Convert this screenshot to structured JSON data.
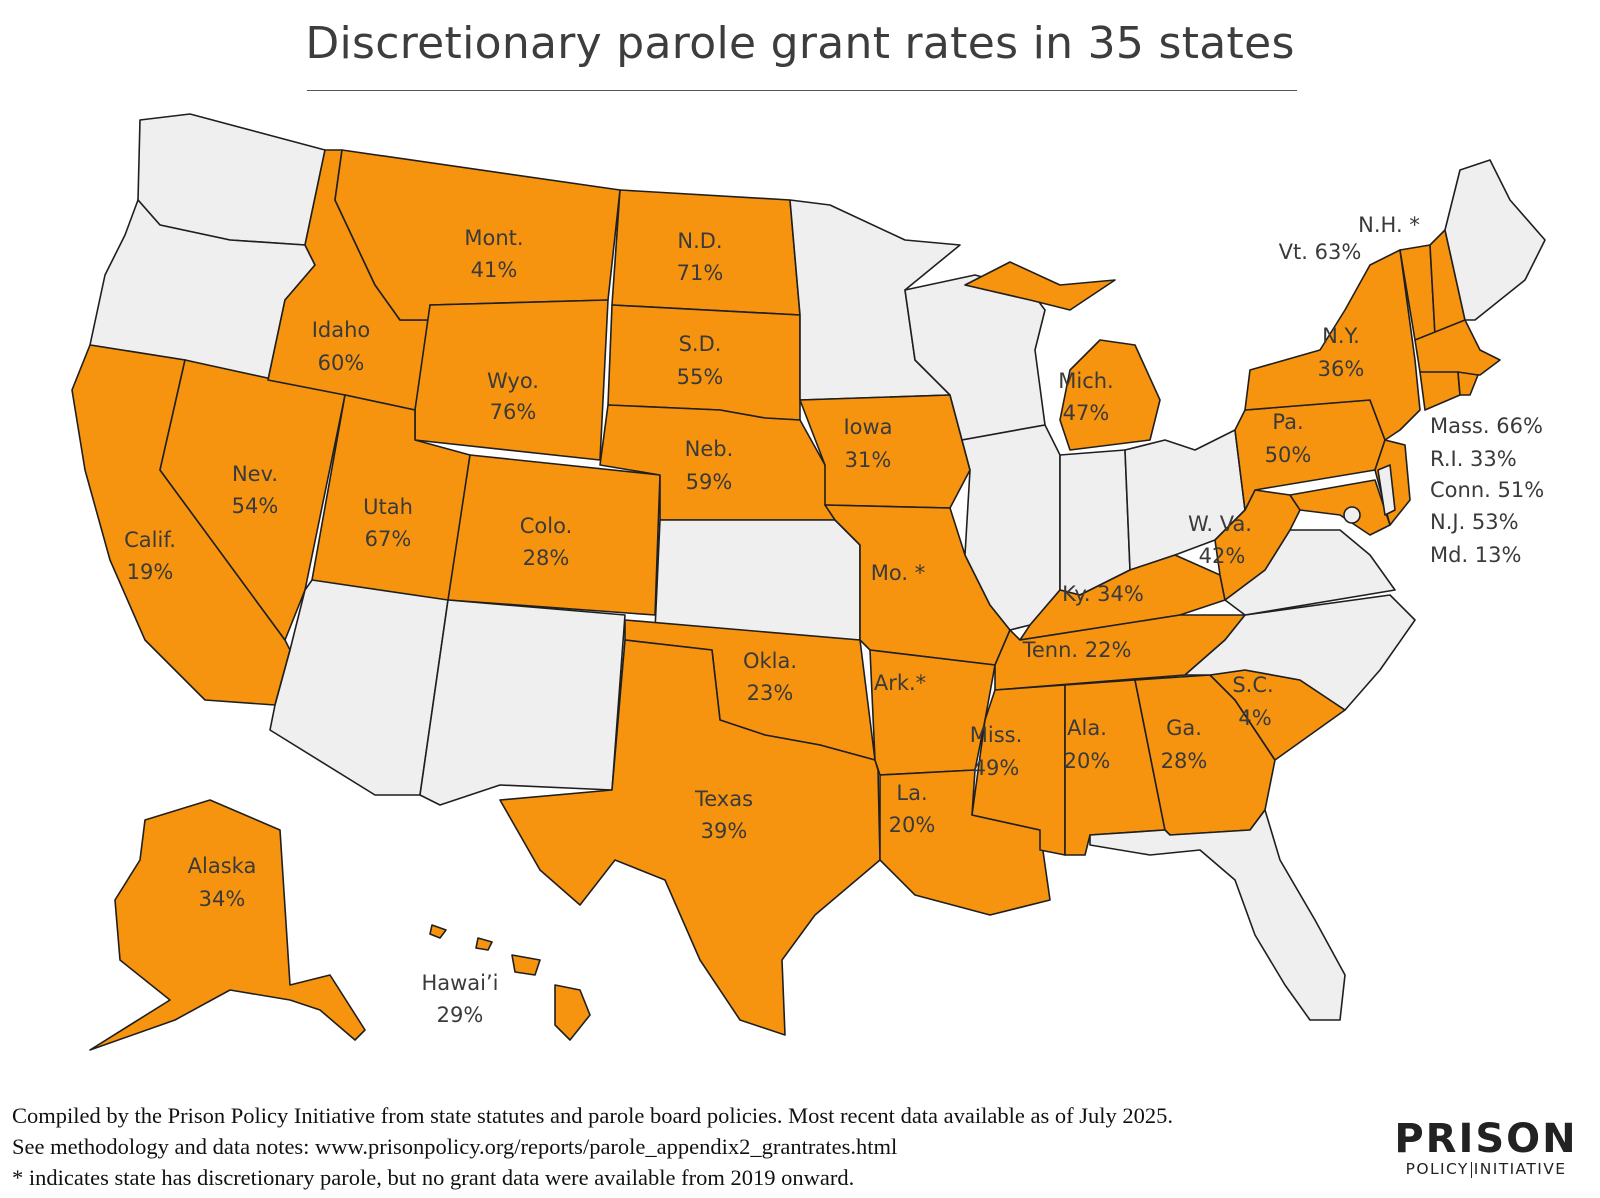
{
  "title": "Discretionary parole grant rates in 35 states",
  "colors": {
    "has_parole": "#f7940f",
    "no_parole": "#efefef",
    "border": "#1f1f1f"
  },
  "states": {
    "mont": {
      "name": "Mont.",
      "rate": "41%"
    },
    "nd": {
      "name": "N.D.",
      "rate": "71%"
    },
    "idaho": {
      "name": "Idaho",
      "rate": "60%"
    },
    "wyo": {
      "name": "Wyo.",
      "rate": "76%"
    },
    "sd": {
      "name": "S.D.",
      "rate": "55%"
    },
    "neb": {
      "name": "Neb.",
      "rate": "59%"
    },
    "iowa": {
      "name": "Iowa",
      "rate": "31%"
    },
    "nev": {
      "name": "Nev.",
      "rate": "54%"
    },
    "utah": {
      "name": "Utah",
      "rate": "67%"
    },
    "colo": {
      "name": "Colo.",
      "rate": "28%"
    },
    "calif": {
      "name": "Calif.",
      "rate": "19%"
    },
    "mo": {
      "name": "Mo. *"
    },
    "mich": {
      "name": "Mich.",
      "rate": "47%"
    },
    "ny": {
      "name": "N.Y.",
      "rate": "36%"
    },
    "pa": {
      "name": "Pa.",
      "rate": "50%"
    },
    "wva": {
      "name": "W. Va.",
      "rate": "42%"
    },
    "ky": {
      "label": "Ky. 34%"
    },
    "tenn": {
      "label": "Tenn. 22%"
    },
    "okla": {
      "name": "Okla.",
      "rate": "23%"
    },
    "ark": {
      "name": "Ark.*"
    },
    "miss": {
      "name": "Miss.",
      "rate": "49%"
    },
    "ala": {
      "name": "Ala.",
      "rate": "20%"
    },
    "ga": {
      "name": "Ga.",
      "rate": "28%"
    },
    "sc": {
      "name": "S.C.",
      "rate": "4%"
    },
    "texas": {
      "name": "Texas",
      "rate": "39%"
    },
    "la": {
      "name": "La.",
      "rate": "20%"
    },
    "alaska": {
      "name": "Alaska",
      "rate": "34%"
    },
    "hawaii": {
      "name": "Hawai’i",
      "rate": "29%"
    },
    "nh": {
      "label": "N.H. *"
    },
    "vt": {
      "label": "Vt. 63%"
    }
  },
  "side_labels": [
    "Mass. 66%",
    "R.I. 33%",
    "Conn. 51%",
    "N.J. 53%",
    "Md. 13%"
  ],
  "notes": [
    "Compiled by the Prison Policy Initiative from state statutes and parole board policies. Most recent data available as of July 2025.",
    "See methodology and data notes: www.prisonpolicy.org/reports/parole_appendix2_grantrates.html",
    "* indicates state has discretionary parole, but no grant data were available from 2019 onward."
  ],
  "logo": {
    "top": "PRISON",
    "bottom_left": "POLICY",
    "bottom_right": "INITIATIVE"
  }
}
